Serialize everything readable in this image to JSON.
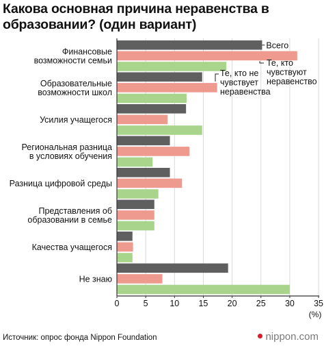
{
  "title_lines": [
    "Какова основная причина неравенства в",
    "образовании? (один вариант)"
  ],
  "source": "Источник: опрос фонда Nippon Foundation",
  "brand": "nippon.com",
  "colors": {
    "all": "#5f5f5f",
    "feel": "#ef9a8e",
    "not_feel": "#a8d48b",
    "axis": "#333333",
    "grid": "#d9d9d9"
  },
  "chart_data": {
    "type": "bar",
    "orientation": "horizontal",
    "categories": [
      [
        "Финансовые",
        "возможности семьи"
      ],
      [
        "Образовательные",
        "возможности школ"
      ],
      [
        "Усилия учащегося"
      ],
      [
        "Региональная разница",
        "в условиях обучения"
      ],
      [
        "Разница цифровой среды"
      ],
      [
        "Представления об",
        "образовании в семье"
      ],
      [
        "Качества учащегося"
      ],
      [
        "Не знаю"
      ]
    ],
    "series": [
      {
        "name": "Всего",
        "values": [
          25.2,
          14.8,
          12.0,
          9.2,
          9.2,
          6.5,
          2.7,
          19.3
        ]
      },
      {
        "name": "Те, кто чувствуют неравенство",
        "values": [
          31.3,
          17.4,
          8.8,
          12.6,
          11.3,
          6.5,
          2.8,
          7.9
        ]
      },
      {
        "name": "Те, кто не чувствует неравенства",
        "values": [
          19.0,
          12.1,
          14.8,
          6.2,
          7.2,
          6.5,
          2.7,
          30.0
        ]
      }
    ],
    "legend_labels": [
      [
        "Всего"
      ],
      [
        "Те, кто",
        "чувствуют",
        "неравенство"
      ],
      [
        "Те, кто не",
        "чувствует",
        "неравенства"
      ]
    ],
    "xlim": [
      0,
      35
    ],
    "xticks": [
      0,
      5,
      10,
      15,
      20,
      25,
      30,
      35
    ],
    "xlabel": "(%)"
  }
}
